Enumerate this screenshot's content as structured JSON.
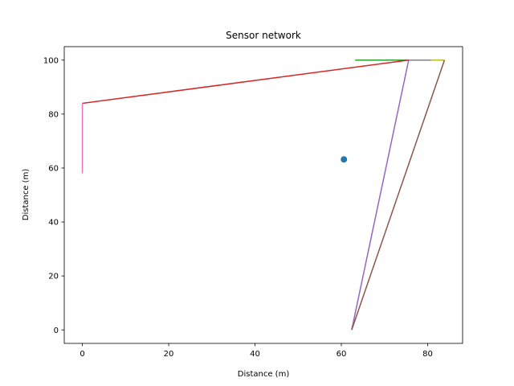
{
  "chart_data": {
    "type": "line",
    "title": "Sensor network",
    "xlabel": "Distance (m)",
    "ylabel": "Distance (m)",
    "xlim": [
      -4.2,
      88.1
    ],
    "ylim": [
      -5,
      105
    ],
    "xticks": [
      0,
      20,
      40,
      60,
      80
    ],
    "yticks": [
      0,
      20,
      40,
      60,
      80,
      100
    ],
    "grid": false,
    "series": [
      {
        "color": "#2ca02c",
        "x": [
          63.2,
          80.8
        ],
        "y": [
          100,
          100
        ]
      },
      {
        "color": "#bcbd22",
        "x": [
          80.8,
          83.9
        ],
        "y": [
          100,
          100
        ]
      },
      {
        "color": "#7f7f7f",
        "x": [
          75.6,
          80.8
        ],
        "y": [
          100,
          100
        ]
      },
      {
        "color": "#d62728",
        "x": [
          0,
          75.6
        ],
        "y": [
          84,
          100
        ]
      },
      {
        "color": "#e377c2",
        "x": [
          0,
          0
        ],
        "y": [
          84,
          58
        ]
      },
      {
        "color": "#9467bd",
        "x": [
          75.6,
          62.4
        ],
        "y": [
          100,
          0
        ]
      },
      {
        "color": "#8c564b",
        "x": [
          83.9,
          62.4
        ],
        "y": [
          100,
          0
        ]
      }
    ],
    "points": [
      {
        "color": "#1f77b4",
        "x": 60.6,
        "y": 63.2
      }
    ]
  }
}
